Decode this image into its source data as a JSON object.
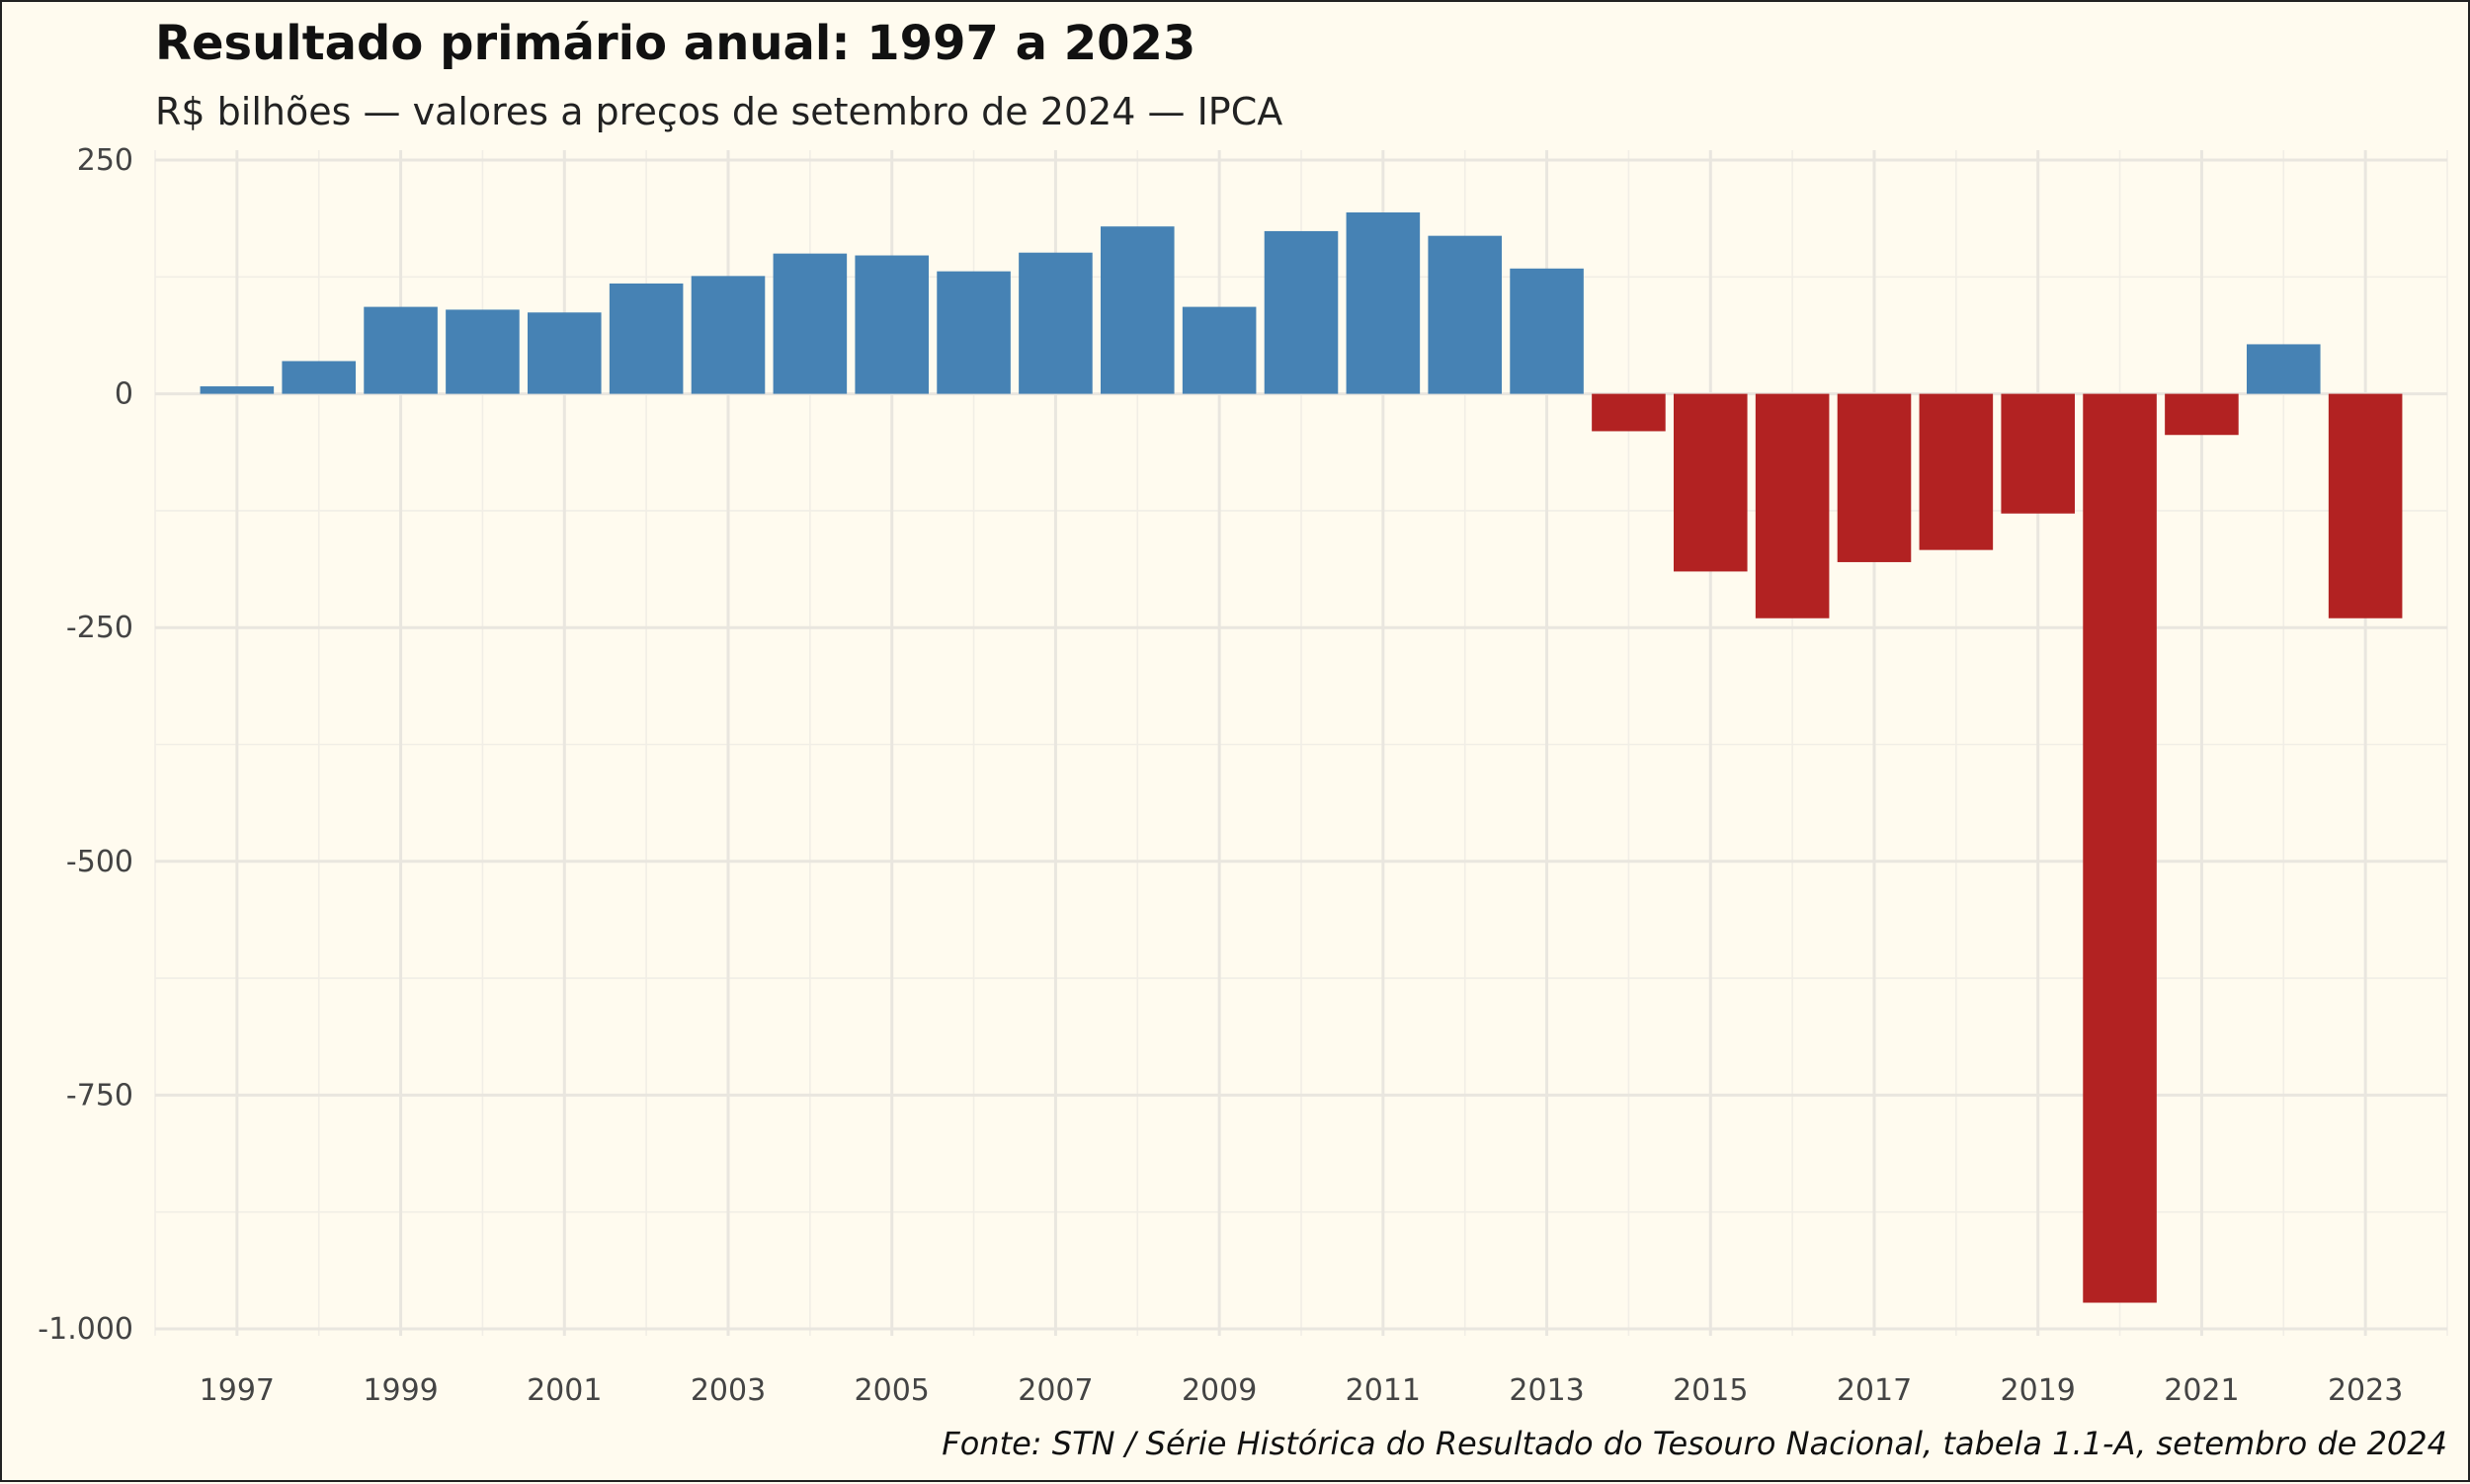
{
  "chart_data": {
    "type": "bar",
    "title": "Resultado primário anual: 1997 a 2023",
    "subtitle": "R$ bilhões — valores a preços de setembro de 2024 — IPCA",
    "caption": "Fonte: STN / Série Histórica do Resultado do Tesouro Nacional, tabela 1.1-A, setembro de 2024",
    "xlabel": "",
    "ylabel": "",
    "ylim": [
      -1000,
      250
    ],
    "xlim": [
      1996,
      2024
    ],
    "y_ticks": [
      250,
      0,
      -250,
      -500,
      -750,
      -1000
    ],
    "y_tick_labels": [
      "250",
      "0",
      "-250",
      "-500",
      "-750",
      "-1.000"
    ],
    "x_ticks": [
      1997,
      1999,
      2001,
      2003,
      2005,
      2007,
      2009,
      2011,
      2013,
      2015,
      2017,
      2019,
      2021,
      2023
    ],
    "grid": true,
    "legend": "none",
    "colors": {
      "positive": "#4682b4",
      "negative": "#b22222",
      "background": "#fffbef"
    },
    "categories": [
      1997,
      1998,
      1999,
      2000,
      2001,
      2002,
      2003,
      2004,
      2005,
      2006,
      2007,
      2008,
      2009,
      2010,
      2011,
      2012,
      2013,
      2014,
      2015,
      2016,
      2017,
      2018,
      2019,
      2020,
      2021,
      2022,
      2023
    ],
    "values": [
      8,
      35,
      93,
      90,
      87,
      118,
      126,
      150,
      148,
      131,
      151,
      179,
      93,
      174,
      194,
      169,
      134,
      -40,
      -190,
      -240,
      -180,
      -167,
      -128,
      -972,
      -44,
      53,
      -240
    ]
  }
}
